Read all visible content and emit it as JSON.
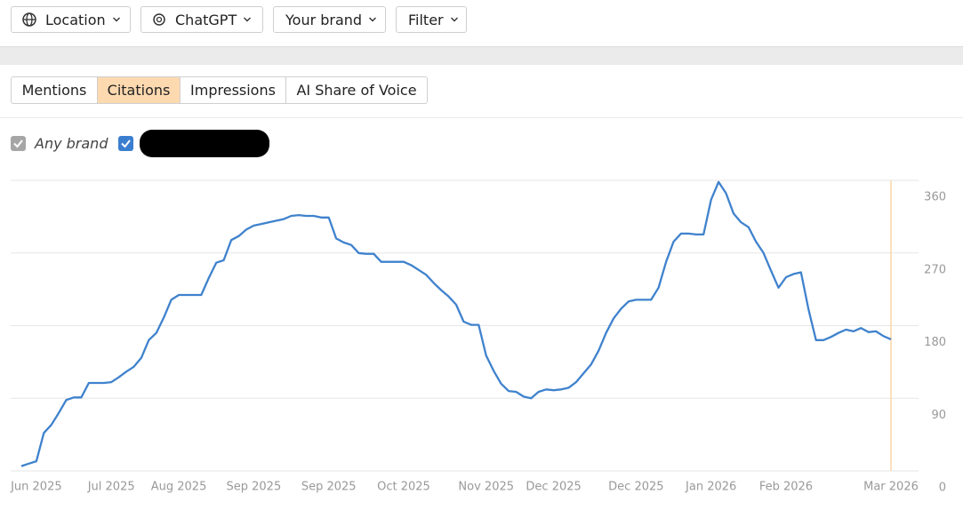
{
  "toolbar": {
    "filters": [
      "Location",
      "ChatGPT",
      "Your brand",
      "Filter"
    ]
  },
  "tabs": {
    "items": [
      "Mentions",
      "Citations",
      "Impressions",
      "AI Share of Voice"
    ],
    "active": 1
  },
  "brand_filters": {
    "any_brand": "Any brand"
  },
  "chart_data": {
    "type": "line",
    "categories": [
      null,
      null,
      "Jun 2025",
      null,
      null,
      null,
      null,
      null,
      null,
      null,
      null,
      null,
      "Jul 2025",
      null,
      null,
      null,
      null,
      null,
      null,
      null,
      null,
      "Aug 2025",
      null,
      null,
      null,
      null,
      null,
      null,
      null,
      null,
      null,
      "Sep 2025",
      null,
      null,
      null,
      null,
      null,
      null,
      null,
      null,
      null,
      "Sep 2025",
      null,
      null,
      null,
      null,
      null,
      null,
      null,
      null,
      null,
      "Oct 2025",
      null,
      null,
      null,
      null,
      null,
      null,
      null,
      null,
      null,
      null,
      "Nov 2025",
      null,
      null,
      null,
      null,
      null,
      null,
      null,
      null,
      "Dec 2025",
      null,
      null,
      null,
      null,
      null,
      null,
      null,
      null,
      null,
      null,
      "Dec 2025",
      null,
      null,
      null,
      null,
      null,
      null,
      null,
      null,
      null,
      "Jan 2026",
      null,
      null,
      null,
      null,
      null,
      null,
      null,
      null,
      null,
      "Feb 2026",
      null,
      null,
      null,
      null,
      null,
      null,
      null,
      null,
      null,
      null,
      null,
      null,
      null,
      "Mar 2026"
    ],
    "series": [
      {
        "color": "#3f82cd",
        "values": [
          6,
          9,
          12,
          47,
          57,
          72,
          88,
          91,
          91,
          109,
          109,
          109,
          110,
          116,
          123,
          129,
          140,
          162,
          171,
          190,
          212,
          218,
          218,
          218,
          218,
          239,
          258,
          261,
          286,
          291,
          299,
          304,
          306,
          308,
          310,
          312,
          316,
          317,
          316,
          316,
          314,
          314,
          288,
          283,
          280,
          270,
          269,
          269,
          259,
          259,
          259,
          259,
          255,
          249,
          243,
          233,
          224,
          216,
          206,
          185,
          181,
          181,
          143,
          124,
          108,
          99,
          98,
          92,
          90,
          98,
          101,
          100,
          101,
          103,
          110,
          121,
          132,
          149,
          171,
          189,
          201,
          210,
          212,
          212,
          212,
          227,
          259,
          284,
          294,
          294,
          293,
          293,
          336,
          358,
          344,
          319,
          308,
          302,
          284,
          270,
          248,
          227,
          240,
          244,
          246,
          200,
          162,
          162,
          166,
          171,
          175,
          173,
          177,
          172,
          173,
          167,
          163
        ]
      }
    ],
    "ylim": [
      0,
      360
    ],
    "yticks": [
      0,
      90,
      180,
      270,
      360
    ],
    "grid": true,
    "y_axis_side": "right"
  }
}
